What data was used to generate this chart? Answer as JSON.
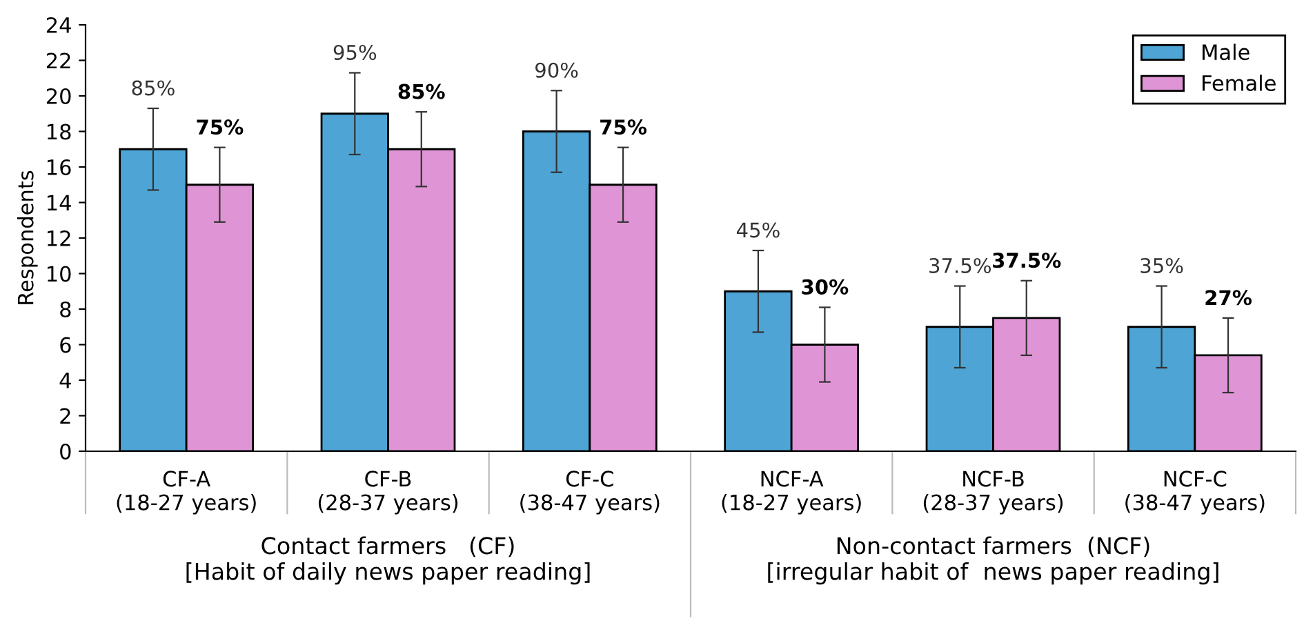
{
  "chart_data": {
    "type": "bar",
    "ylabel": "Respondents",
    "categories": [
      "CF-A\n(18-27 years)",
      "CF-B\n(28-37 years)",
      "CF-C\n(38-47 years)",
      "NCF-A\n(18-27 years)",
      "NCF-B\n(28-37 years)",
      "NCF-C\n(38-47 years)"
    ],
    "series": [
      {
        "name": "Male",
        "color": "#4ea5d5",
        "values": [
          17,
          19,
          18,
          9,
          7,
          7
        ],
        "errors": [
          2.3,
          2.3,
          2.3,
          2.3,
          2.3,
          2.3
        ]
      },
      {
        "name": "Female",
        "color": "#df95d5",
        "values": [
          15,
          17,
          15,
          6,
          7.5,
          5.4
        ],
        "errors": [
          2.1,
          2.1,
          2.1,
          2.1,
          2.1,
          2.1
        ]
      }
    ],
    "ylim": [
      0,
      24
    ],
    "yticks": [
      0,
      2,
      4,
      6,
      8,
      10,
      12,
      14,
      16,
      18,
      20,
      22,
      24
    ],
    "grid": false,
    "legend": "top right",
    "annotations": [
      "Contact farmers   (CF)\n[Habit of daily news paper reading]",
      "Non-contact farmers  (NCF)\n[irregular habit of  news paper reading]",
      {
        "text": "85%",
        "x": "CF-A\n(18-27 years)",
        "y": 17
      },
      {
        "text": "95%",
        "x": "CF-B\n(28-37 years)",
        "y": 19
      },
      {
        "text": "90%",
        "x": "CF-C\n(38-47 years)",
        "y": 18
      },
      {
        "text": "45%",
        "x": "NCF-A\n(18-27 years)",
        "y": 9
      },
      {
        "text": "37.5%",
        "x": "NCF-B\n(28-37 years)",
        "y": 7
      },
      {
        "text": "35%",
        "x": "NCF-C\n(38-47 years)",
        "y": 7
      },
      {
        "text": "75%",
        "x": "CF-A\n(18-27 years)",
        "y": 15
      },
      {
        "text": "85%",
        "x": "CF-B\n(28-37 years)",
        "y": 17
      },
      {
        "text": "75%",
        "x": "CF-C\n(38-47 years)",
        "y": 15
      },
      {
        "text": "30%",
        "x": "NCF-A\n(18-27 years)",
        "y": 6
      },
      {
        "text": "37.5%",
        "x": "NCF-B\n(28-37 years)",
        "y": 7.5
      },
      {
        "text": "27%",
        "x": "NCF-C\n(38-47 years)",
        "y": 5.4
      }
    ]
  }
}
